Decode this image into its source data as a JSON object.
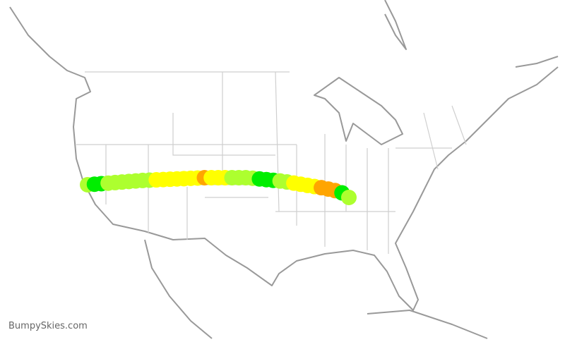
{
  "brand": "BumpySkies.com",
  "route": {
    "colors": {
      "green": "#00ee00",
      "lightgreen": "#adff2f",
      "yellow": "#ffff00",
      "orange": "#ffa500"
    },
    "markers": [
      "lightgreen",
      "green",
      "green",
      "lightgreen",
      "lightgreen",
      "lightgreen",
      "lightgreen",
      "lightgreen",
      "lightgreen",
      "lightgreen",
      "yellow",
      "yellow",
      "yellow",
      "yellow",
      "yellow",
      "yellow",
      "yellow",
      "orange",
      "yellow",
      "yellow",
      "yellow",
      "lightgreen",
      "lightgreen",
      "lightgreen",
      "lightgreen",
      "green",
      "green",
      "green",
      "lightgreen",
      "lightgreen",
      "yellow",
      "yellow",
      "yellow",
      "yellow",
      "orange",
      "orange",
      "orange",
      "green",
      "lightgreen"
    ]
  }
}
